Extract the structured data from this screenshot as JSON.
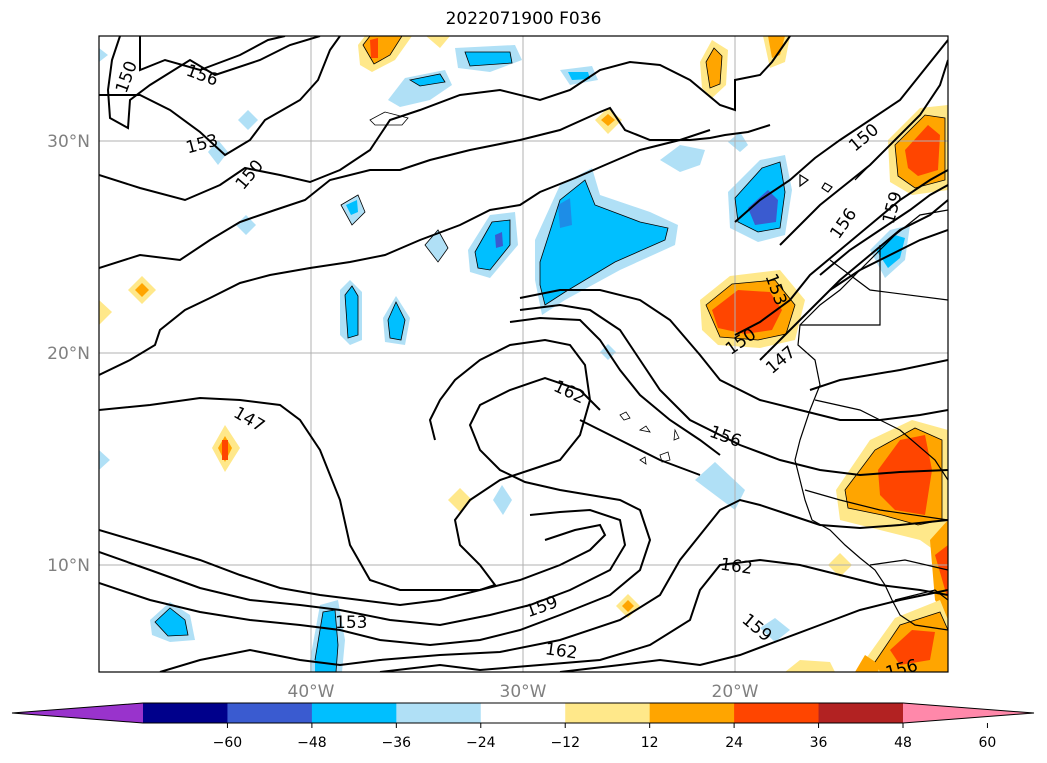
{
  "title": "2022071900 F036",
  "lat_labels": [
    "30°N",
    "20°N",
    "10°N"
  ],
  "lon_labels": [
    "40°W",
    "30°W",
    "20°W"
  ],
  "contour_labels": [
    "150",
    "156",
    "153",
    "150",
    "150",
    "156",
    "159",
    "153",
    "150",
    "147",
    "147",
    "162",
    "156",
    "162",
    "159",
    "153",
    "159",
    "162",
    "156"
  ],
  "colorbar": {
    "colors": [
      "#9933cc",
      "#00008b",
      "#3a5bd0",
      "#00bfff",
      "#b0e0f6",
      "#ffffff",
      "#ffe88a",
      "#ffa500",
      "#ff4500",
      "#b22222",
      "#ff88aa"
    ],
    "tick_labels": [
      "−60",
      "−48",
      "−36",
      "−24",
      "−12",
      "12",
      "24",
      "36",
      "48",
      "60"
    ]
  },
  "colors": {
    "grid": "#b0b0b0",
    "contour": "#000000"
  }
}
